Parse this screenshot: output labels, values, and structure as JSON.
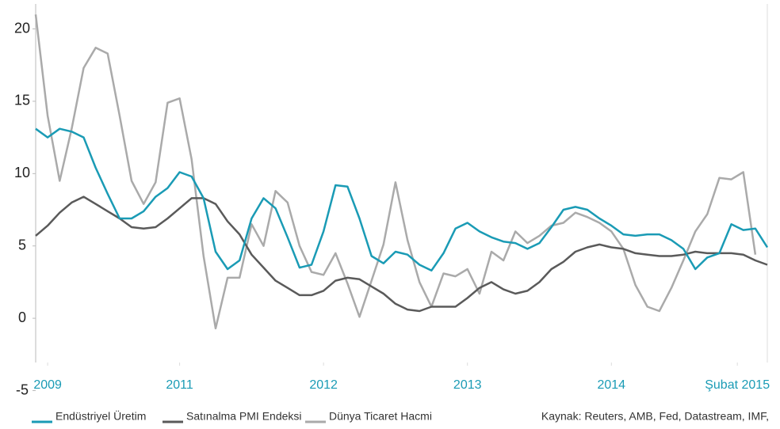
{
  "chart_data": {
    "type": "line",
    "xlim": [
      0,
      61
    ],
    "ylim": [
      -5,
      22
    ],
    "yticks": [
      -5,
      0,
      5,
      10,
      15,
      20
    ],
    "xticks": [
      {
        "value": 1,
        "label": "2009"
      },
      {
        "value": 12,
        "label": "2011"
      },
      {
        "value": 24,
        "label": "2012"
      },
      {
        "value": 36,
        "label": "2013"
      },
      {
        "value": 48,
        "label": "2014"
      },
      {
        "value": 58.5,
        "label": "Şubat 2015"
      }
    ],
    "source": "Kaynak: Reuters, AMB, Fed, Datastream, IMF,",
    "series": [
      {
        "name": "Endüstriyel Üretim",
        "color": "#1a9bb5",
        "values": [
          13.1,
          12.5,
          13.1,
          12.9,
          12.5,
          10.4,
          8.6,
          6.9,
          6.9,
          7.4,
          8.4,
          9.0,
          10.1,
          9.8,
          8.3,
          4.6,
          3.4,
          4.0,
          6.9,
          8.3,
          7.6,
          5.6,
          3.5,
          3.7,
          6.0,
          9.2,
          9.1,
          6.9,
          4.3,
          3.8,
          4.6,
          4.4,
          3.7,
          3.3,
          4.5,
          6.2,
          6.6,
          6.0,
          5.6,
          5.3,
          5.2,
          4.8,
          5.2,
          6.3,
          7.5,
          7.7,
          7.5,
          6.9,
          6.4,
          5.8,
          5.7,
          5.8,
          5.8,
          5.4,
          4.8,
          3.4,
          4.2,
          4.5,
          6.5,
          6.1,
          6.2,
          4.9
        ]
      },
      {
        "name": "Satınalma PMI Endeksi",
        "color": "#5a5a5a",
        "values": [
          5.7,
          6.4,
          7.3,
          8.0,
          8.4,
          7.9,
          7.4,
          6.9,
          6.3,
          6.2,
          6.3,
          6.9,
          7.6,
          8.3,
          8.3,
          7.9,
          6.7,
          5.8,
          4.4,
          3.5,
          2.6,
          2.1,
          1.6,
          1.6,
          1.9,
          2.6,
          2.8,
          2.7,
          2.2,
          1.7,
          1.0,
          0.6,
          0.5,
          0.8,
          0.8,
          0.8,
          1.4,
          2.1,
          2.5,
          2.0,
          1.7,
          1.9,
          2.5,
          3.4,
          3.9,
          4.6,
          4.9,
          5.1,
          4.9,
          4.8,
          4.5,
          4.4,
          4.3,
          4.3,
          4.4,
          4.6,
          4.5,
          4.5,
          4.5,
          4.4,
          4.0,
          3.7
        ]
      },
      {
        "name": "Dünya Ticaret Hacmi",
        "color": "#aaaaaa",
        "values": [
          21.0,
          14.0,
          9.5,
          13.1,
          17.3,
          18.7,
          18.3,
          14.0,
          9.5,
          7.9,
          9.4,
          14.9,
          15.2,
          11.0,
          4.3,
          -0.7,
          2.8,
          2.8,
          6.5,
          5.0,
          8.8,
          8.0,
          5.0,
          3.2,
          3.0,
          4.5,
          2.4,
          0.1,
          2.6,
          5.1,
          9.4,
          5.4,
          2.5,
          0.8,
          3.1,
          2.9,
          3.4,
          1.7,
          4.6,
          4.0,
          6.0,
          5.2,
          5.7,
          6.4,
          6.6,
          7.3,
          7.0,
          6.6,
          6.0,
          4.8,
          2.3,
          0.8,
          0.5,
          2.1,
          4.0,
          6.0,
          7.2,
          9.7,
          9.6,
          10.1,
          4.4,
          null
        ]
      }
    ]
  }
}
